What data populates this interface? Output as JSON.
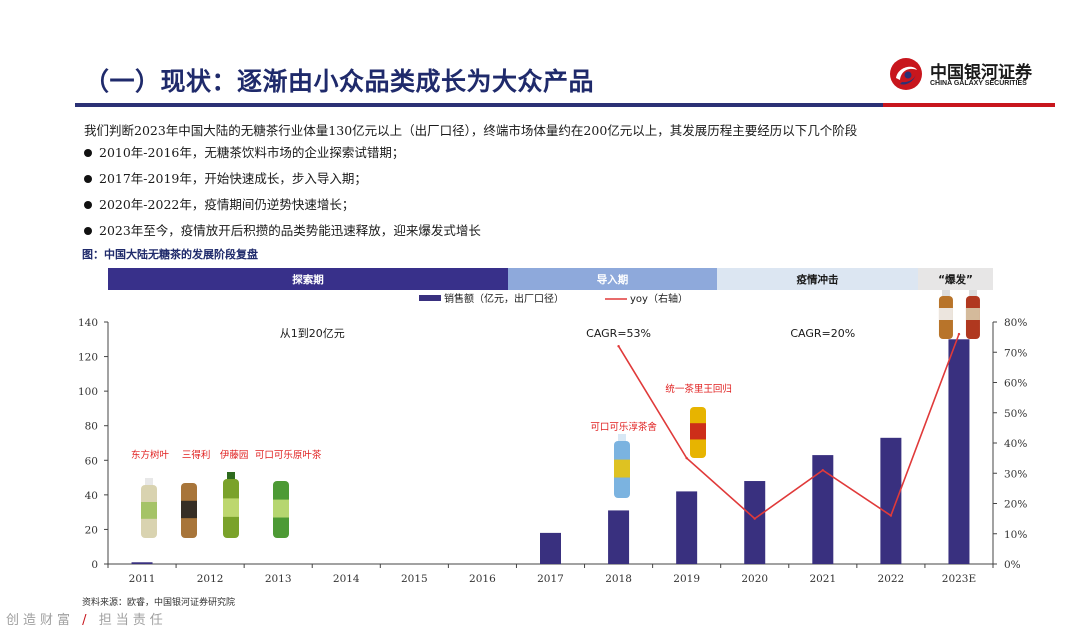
{
  "header": {
    "title": "（一）现状：逐渐由小众品类成长为大众产品",
    "logo_cn": "中国银河证券",
    "logo_en": "CHINA GALAXY SECURITIES",
    "brand_colors": {
      "navy": "#2b3175",
      "red": "#c8161d"
    }
  },
  "intro": "我们判断2023年中国大陆的无糖茶行业体量130亿元以上（出厂口径），终端市场体量约在200亿元以上，其发展历程主要经历以下几个阶段",
  "bullets": [
    "2010年-2016年，无糖茶饮料市场的企业探索试错期；",
    "2017年-2019年，开始快速成长，步入导入期；",
    "2020年-2022年，疫情期间仍逆势快速增长；",
    "2023年至今，疫情放开后积攒的品类势能迅速释放，迎来爆发式增长"
  ],
  "figure_caption": "图：中国大陆无糖茶的发展阶段复盘",
  "source": "资料来源：欧睿，中国银河证券研究院",
  "slogan": {
    "left": "创造财富",
    "sep": "/",
    "right": "担当责任"
  },
  "chart_data": {
    "type": "bar",
    "categories": [
      "2011",
      "2012",
      "2013",
      "2014",
      "2015",
      "2016",
      "2017",
      "2018",
      "2019",
      "2020",
      "2021",
      "2022",
      "2023E"
    ],
    "series": [
      {
        "name": "销售额（亿元，出厂口径）",
        "type": "bar",
        "axis": "left",
        "color": "#39307f",
        "values": [
          1,
          null,
          null,
          null,
          null,
          null,
          18,
          31,
          42,
          48,
          63,
          73,
          130
        ]
      },
      {
        "name": "yoy（右轴）",
        "type": "line",
        "axis": "right",
        "color": "#e03a3a",
        "values": [
          null,
          null,
          null,
          null,
          null,
          null,
          null,
          0.72,
          0.35,
          0.15,
          0.31,
          0.16,
          0.76
        ]
      }
    ],
    "y_left": {
      "min": 0,
      "max": 140,
      "ticks": [
        "0",
        "20",
        "40",
        "60",
        "80",
        "100",
        "120",
        "140"
      ]
    },
    "y_right": {
      "min": 0,
      "max": 0.8,
      "ticks": [
        "0%",
        "10%",
        "20%",
        "30%",
        "40%",
        "50%",
        "60%",
        "70%",
        "80%"
      ]
    },
    "legend_position": "top-center",
    "phases": [
      {
        "label": "探索期",
        "start": "2011",
        "end": "2016",
        "color": "#38308a",
        "text_color": "#ffffff"
      },
      {
        "label": "导入期",
        "start": "2017",
        "end": "2019",
        "color": "#8ea9db",
        "text_color": "#ffffff"
      },
      {
        "label": "疫情冲击",
        "start": "2020",
        "end": "2022",
        "color": "#dce6f2",
        "text_color": "#1a1a1a"
      },
      {
        "label": "“爆发”",
        "start": "2023E",
        "end": "2023E",
        "color": "#e7e6e6",
        "text_color": "#1a1a1a"
      }
    ],
    "annotations": [
      {
        "text": "从1到20亿元",
        "category_from": "2013",
        "category_to": "2014",
        "value": 136,
        "color": "#1a1a1a"
      },
      {
        "text": "CAGR=53%",
        "category_from": "2018",
        "category_to": "2018",
        "value": 136,
        "color": "#1a1a1a"
      },
      {
        "text": "CAGR=20%",
        "category_from": "2021",
        "category_to": "2021",
        "value": 136,
        "color": "#1a1a1a"
      }
    ],
    "product_labels": [
      {
        "text": "东方树叶",
        "category": "2011",
        "color": "#e02020"
      },
      {
        "text": "三得利",
        "category": "2012",
        "color": "#e02020"
      },
      {
        "text": "伊藤园",
        "category": "2013",
        "color": "#e02020"
      },
      {
        "text": "可口可乐原叶茶",
        "category": "2013",
        "color": "#e02020"
      },
      {
        "text": "可口可乐淳茶舍",
        "category": "2018",
        "color": "#e02020"
      },
      {
        "text": "统一茶里王回归",
        "category": "2019",
        "color": "#e02020"
      }
    ]
  }
}
